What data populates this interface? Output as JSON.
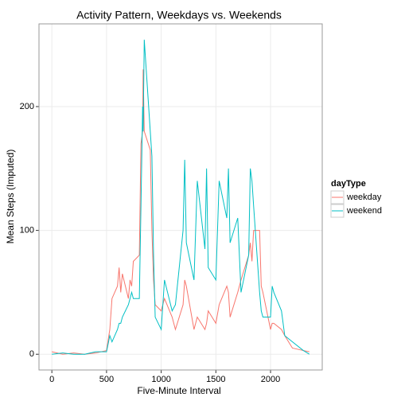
{
  "chart_data": {
    "type": "line",
    "title": "Activity Pattern, Weekdays vs. Weekends",
    "x_label": "Five-Minute Interval",
    "y_label": "Mean Steps (Imputed)",
    "legend_title": "dayType",
    "x": [
      0,
      100,
      200,
      300,
      400,
      500,
      530,
      550,
      600,
      615,
      630,
      645,
      700,
      715,
      730,
      745,
      800,
      815,
      830,
      835,
      845,
      900,
      915,
      930,
      945,
      1000,
      1030,
      1100,
      1130,
      1200,
      1215,
      1230,
      1300,
      1330,
      1400,
      1415,
      1430,
      1500,
      1530,
      1600,
      1615,
      1630,
      1700,
      1730,
      1800,
      1815,
      1830,
      1845,
      1900,
      1915,
      1930,
      2000,
      2015,
      2030,
      2100,
      2130,
      2200,
      2300,
      2355
    ],
    "series": [
      {
        "name": "weekday",
        "color": "#F8766D",
        "values": [
          2,
          0,
          1,
          0,
          1,
          3,
          20,
          45,
          55,
          70,
          50,
          65,
          45,
          60,
          55,
          75,
          80,
          170,
          180,
          230,
          180,
          165,
          100,
          60,
          40,
          35,
          45,
          30,
          20,
          40,
          60,
          55,
          20,
          30,
          20,
          25,
          35,
          25,
          40,
          55,
          50,
          30,
          50,
          60,
          80,
          90,
          75,
          100,
          100,
          55,
          50,
          20,
          25,
          25,
          20,
          15,
          5,
          3,
          2
        ]
      },
      {
        "name": "weekend",
        "color": "#00BFC4",
        "values": [
          0,
          1,
          0,
          0,
          2,
          2,
          15,
          10,
          20,
          25,
          25,
          30,
          40,
          45,
          50,
          45,
          45,
          120,
          200,
          180,
          254,
          180,
          160,
          80,
          30,
          20,
          60,
          35,
          40,
          100,
          157,
          90,
          60,
          140,
          85,
          150,
          70,
          60,
          140,
          110,
          150,
          90,
          110,
          50,
          80,
          150,
          140,
          120,
          50,
          35,
          30,
          30,
          55,
          50,
          35,
          15,
          10,
          3,
          0
        ]
      }
    ],
    "xlim": [
      -117.75,
      2472.75
    ],
    "ylim": [
      -12.7,
      266.8
    ],
    "xticks": [
      0,
      500,
      1000,
      1500,
      2000
    ],
    "yticks": [
      0,
      100,
      200
    ],
    "grid": true,
    "legend": "right"
  }
}
